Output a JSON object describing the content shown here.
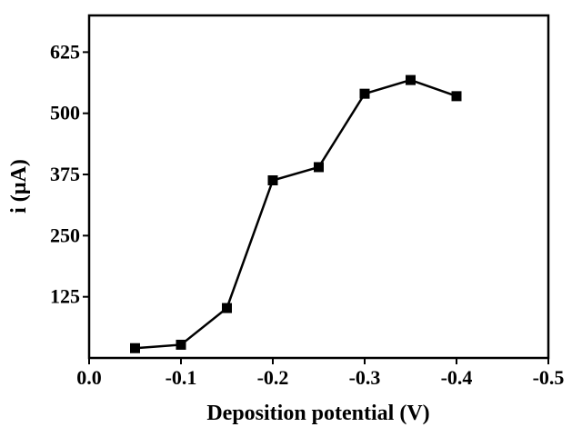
{
  "chart_data": {
    "type": "line",
    "xlabel": "Deposition potential (V)",
    "ylabel": "i (µA)",
    "xlim": [
      0.0,
      -0.5
    ],
    "ylim": [
      0,
      700
    ],
    "x_ticks": [
      0.0,
      -0.1,
      -0.2,
      -0.3,
      -0.4,
      -0.5
    ],
    "x_tick_labels": [
      "0.0",
      "-0.1",
      "-0.2",
      "-0.3",
      "-0.4",
      "-0.5"
    ],
    "y_ticks": [
      125,
      250,
      375,
      500,
      625
    ],
    "y_tick_labels": [
      "125",
      "250",
      "375",
      "500",
      "625"
    ],
    "grid": false,
    "series": [
      {
        "x": [
          -0.05,
          -0.1,
          -0.15,
          -0.2,
          -0.25,
          -0.3,
          -0.35,
          -0.4
        ],
        "y": [
          20,
          27,
          102,
          363,
          390,
          540,
          568,
          535
        ],
        "marker": "square",
        "color": "#000000"
      }
    ]
  }
}
